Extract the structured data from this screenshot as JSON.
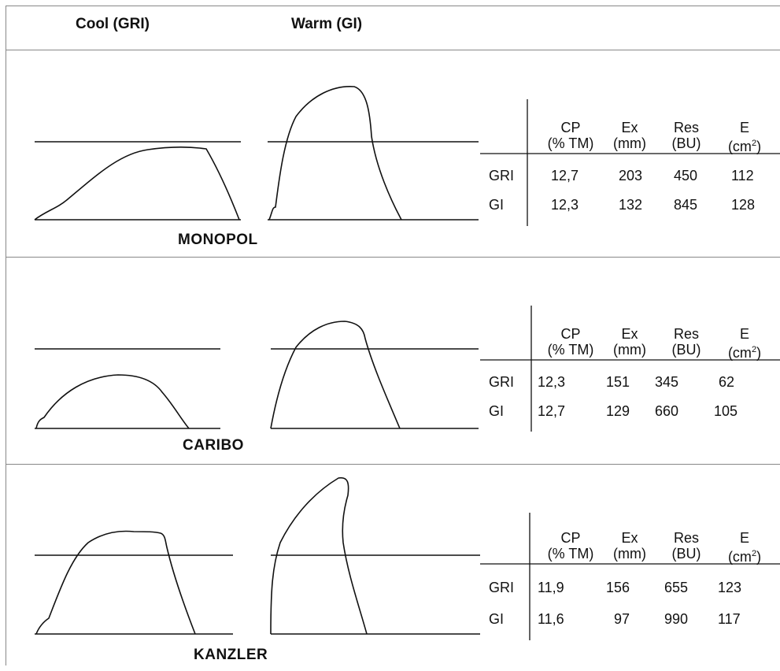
{
  "header": {
    "cool": "Cool (GRI)",
    "warm": "Warm (GI)"
  },
  "columns": [
    {
      "top": "CP",
      "bottom": "(% TM)"
    },
    {
      "top": "Ex",
      "bottom": "(mm)"
    },
    {
      "top": "Res",
      "bottom": "(BU)"
    },
    {
      "top": "E",
      "bottom": "(cm",
      "sup": "2",
      "close": ")"
    }
  ],
  "panels": [
    {
      "name": "MONOPOL",
      "rows": [
        {
          "label": "GRI",
          "values": [
            "12,7",
            "203",
            "450",
            "112"
          ]
        },
        {
          "label": "GI",
          "values": [
            "12,3",
            "132",
            "845",
            "128"
          ]
        }
      ]
    },
    {
      "name": "CARIBO",
      "rows": [
        {
          "label": "GRI",
          "values": [
            "12,3",
            "151",
            "345",
            "62"
          ]
        },
        {
          "label": "GI",
          "values": [
            "12,7",
            "129",
            "660",
            "105"
          ]
        }
      ]
    },
    {
      "name": "KANZLER",
      "rows": [
        {
          "label": "GRI",
          "values": [
            "11,9",
            "156",
            "655",
            "123"
          ]
        },
        {
          "label": "GI",
          "values": [
            "11,6",
            "97",
            "990",
            "117"
          ]
        }
      ]
    }
  ]
}
